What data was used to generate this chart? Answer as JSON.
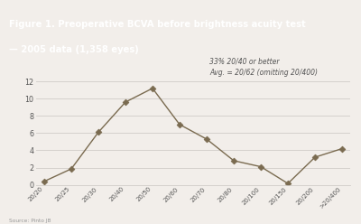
{
  "title_line1": "Figure 1. Preoperative BCVA before brightness acuity test",
  "title_line2": "— 2005 data (1,358 eyes)",
  "annotation_line1": "33% 20/40 or better",
  "annotation_line2": "Avg. = 20/62 (omitting 20/400)",
  "source": "Source: Pinto JB",
  "x_labels": [
    "20/20",
    "20/25",
    "20/30",
    "20/40",
    "20/50",
    "20/60",
    "20/70",
    "20/80",
    "20/100",
    "20/150",
    "20/200",
    ">20/400"
  ],
  "y_values": [
    0.4,
    1.85,
    6.1,
    9.6,
    11.2,
    7.0,
    5.3,
    2.8,
    2.1,
    0.15,
    3.2,
    4.2
  ],
  "ylim": [
    0,
    13
  ],
  "yticks": [
    0,
    2,
    4,
    6,
    8,
    10,
    12
  ],
  "line_color": "#7a6b50",
  "marker_color": "#7a6b50",
  "title_bg_color": "#8c8272",
  "title_text_color": "#ffffff",
  "bg_color": "#f2eeea",
  "grid_color": "#d0ccc8",
  "annotation_color": "#555555",
  "source_color": "#999999",
  "tick_color": "#555555"
}
